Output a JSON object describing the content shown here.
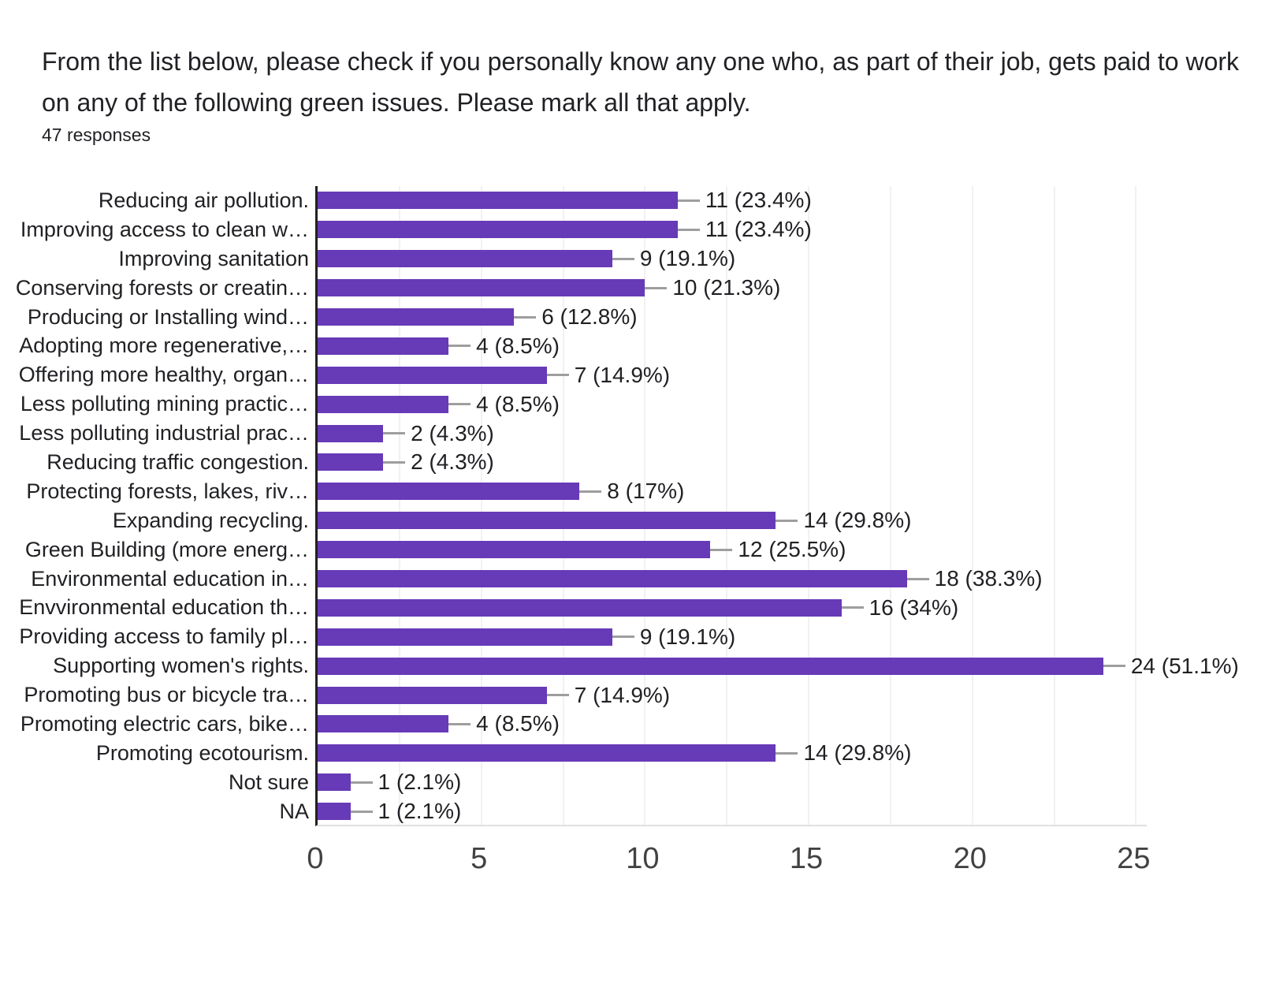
{
  "chart_data": {
    "type": "bar",
    "orientation": "horizontal",
    "title": "From the list below, please check if you personally know any one who, as part of their job, gets paid to work on any of the following green issues. Please mark all that apply.",
    "subtitle": "47 responses",
    "categories": [
      "Reducing air pollution.",
      "Improving access to clean w…",
      "Improving sanitation",
      "Conserving forests or creatin…",
      "Producing or Installing wind…",
      "Adopting more regenerative,…",
      "Offering more healthy, organ…",
      "Less polluting mining practic…",
      "Less polluting industrial prac…",
      "Reducing traffic congestion.",
      "Protecting forests, lakes, riv…",
      "Expanding recycling.",
      "Green Building (more energ…",
      "Environmental education in…",
      "Envvironmental education th…",
      "Providing access to family pl…",
      "Supporting women's rights.",
      "Promoting bus or bicycle tra…",
      "Promoting electric cars, bike…",
      "Promoting ecotourism.",
      "Not sure",
      "NA"
    ],
    "values": [
      11,
      11,
      9,
      10,
      6,
      4,
      7,
      4,
      2,
      2,
      8,
      14,
      12,
      18,
      16,
      9,
      24,
      7,
      4,
      14,
      1,
      1
    ],
    "value_labels": [
      "11 (23.4%)",
      "11 (23.4%)",
      "9 (19.1%)",
      "10 (21.3%)",
      "6 (12.8%)",
      "4 (8.5%)",
      "7 (14.9%)",
      "4 (8.5%)",
      "2 (4.3%)",
      "2 (4.3%)",
      "8 (17%)",
      "14 (29.8%)",
      "12 (25.5%)",
      "18 (38.3%)",
      "16 (34%)",
      "9 (19.1%)",
      "24 (51.1%)",
      "7 (14.9%)",
      "4 (8.5%)",
      "14 (29.8%)",
      "1 (2.1%)",
      "1 (2.1%)"
    ],
    "xlabel": "",
    "ylabel": "",
    "xticks": [
      0,
      5,
      10,
      15,
      20,
      25
    ],
    "xlim": [
      0,
      25.4
    ],
    "gridline_step": 2.5,
    "grid": true,
    "legend": false,
    "bar_color": "#673ab7",
    "axis_color": "#212121",
    "gridline_color": "#f1f1f1",
    "whisker_color": "#9e9e9e",
    "text_color": "#202124",
    "tick_color": "#424242"
  }
}
